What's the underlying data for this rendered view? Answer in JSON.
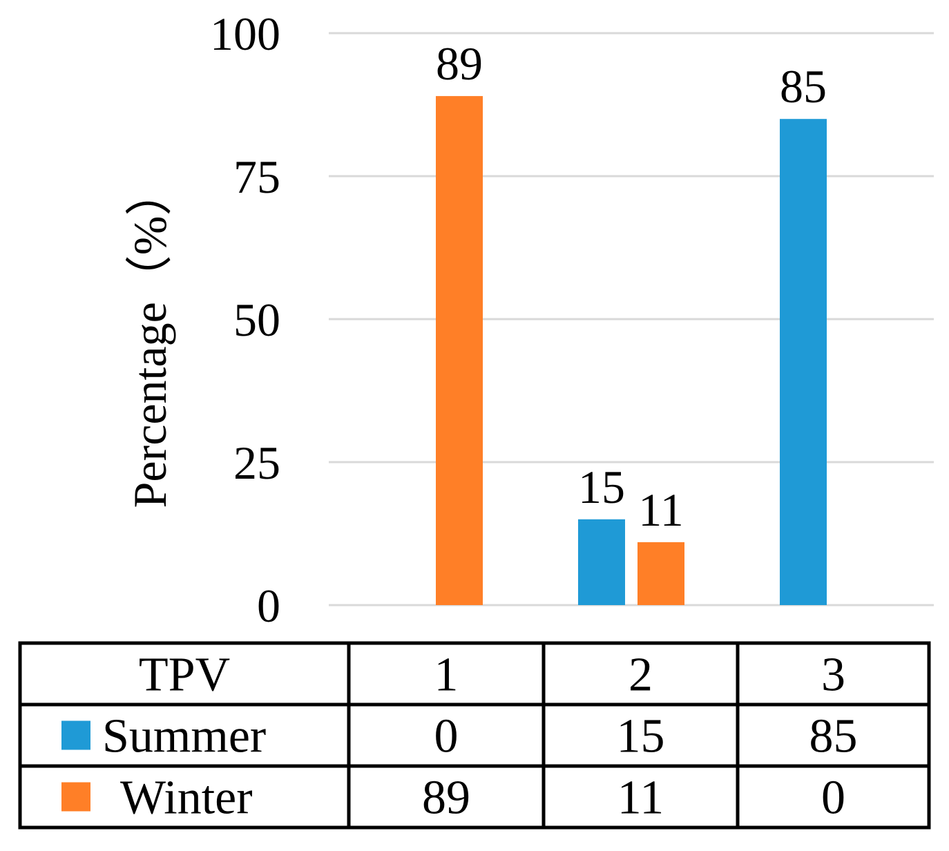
{
  "chart_data": {
    "type": "bar",
    "title": "",
    "xlabel": "TPV",
    "ylabel": "Percentage（%）",
    "ylim": [
      0,
      100
    ],
    "yticks": [
      0,
      25,
      50,
      75,
      100
    ],
    "grid": true,
    "categories": [
      "1",
      "2",
      "3"
    ],
    "series": [
      {
        "name": "Summer",
        "color": "#1f9ad6",
        "values": [
          0,
          15,
          85
        ]
      },
      {
        "name": "Winter",
        "color": "#ff7f27",
        "values": [
          89,
          11,
          0
        ]
      }
    ],
    "data_labels": "shown for non-zero values",
    "data_table": {
      "header": "TPV",
      "rows": [
        {
          "series": "Summer",
          "values": [
            "0",
            "15",
            "85"
          ]
        },
        {
          "series": "Winter",
          "values": [
            "89",
            "11",
            "0"
          ]
        }
      ]
    }
  }
}
